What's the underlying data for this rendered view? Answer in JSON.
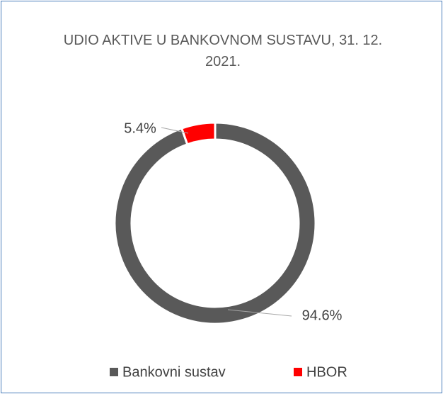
{
  "chart_data": {
    "type": "donut",
    "title": "UDIO AKTIVE U BANKOVNOM SUSTAVU, 31. 12. 2021.",
    "series": [
      {
        "name": "Bankovni sustav",
        "color": "#595959",
        "values": [
          94.6
        ],
        "value_labels": [
          "94.6%"
        ]
      },
      {
        "name": "HBOR",
        "color": "#ff0000",
        "values": [
          5.4
        ],
        "value_labels": [
          "5.4%"
        ]
      }
    ],
    "legend": "bottom"
  }
}
